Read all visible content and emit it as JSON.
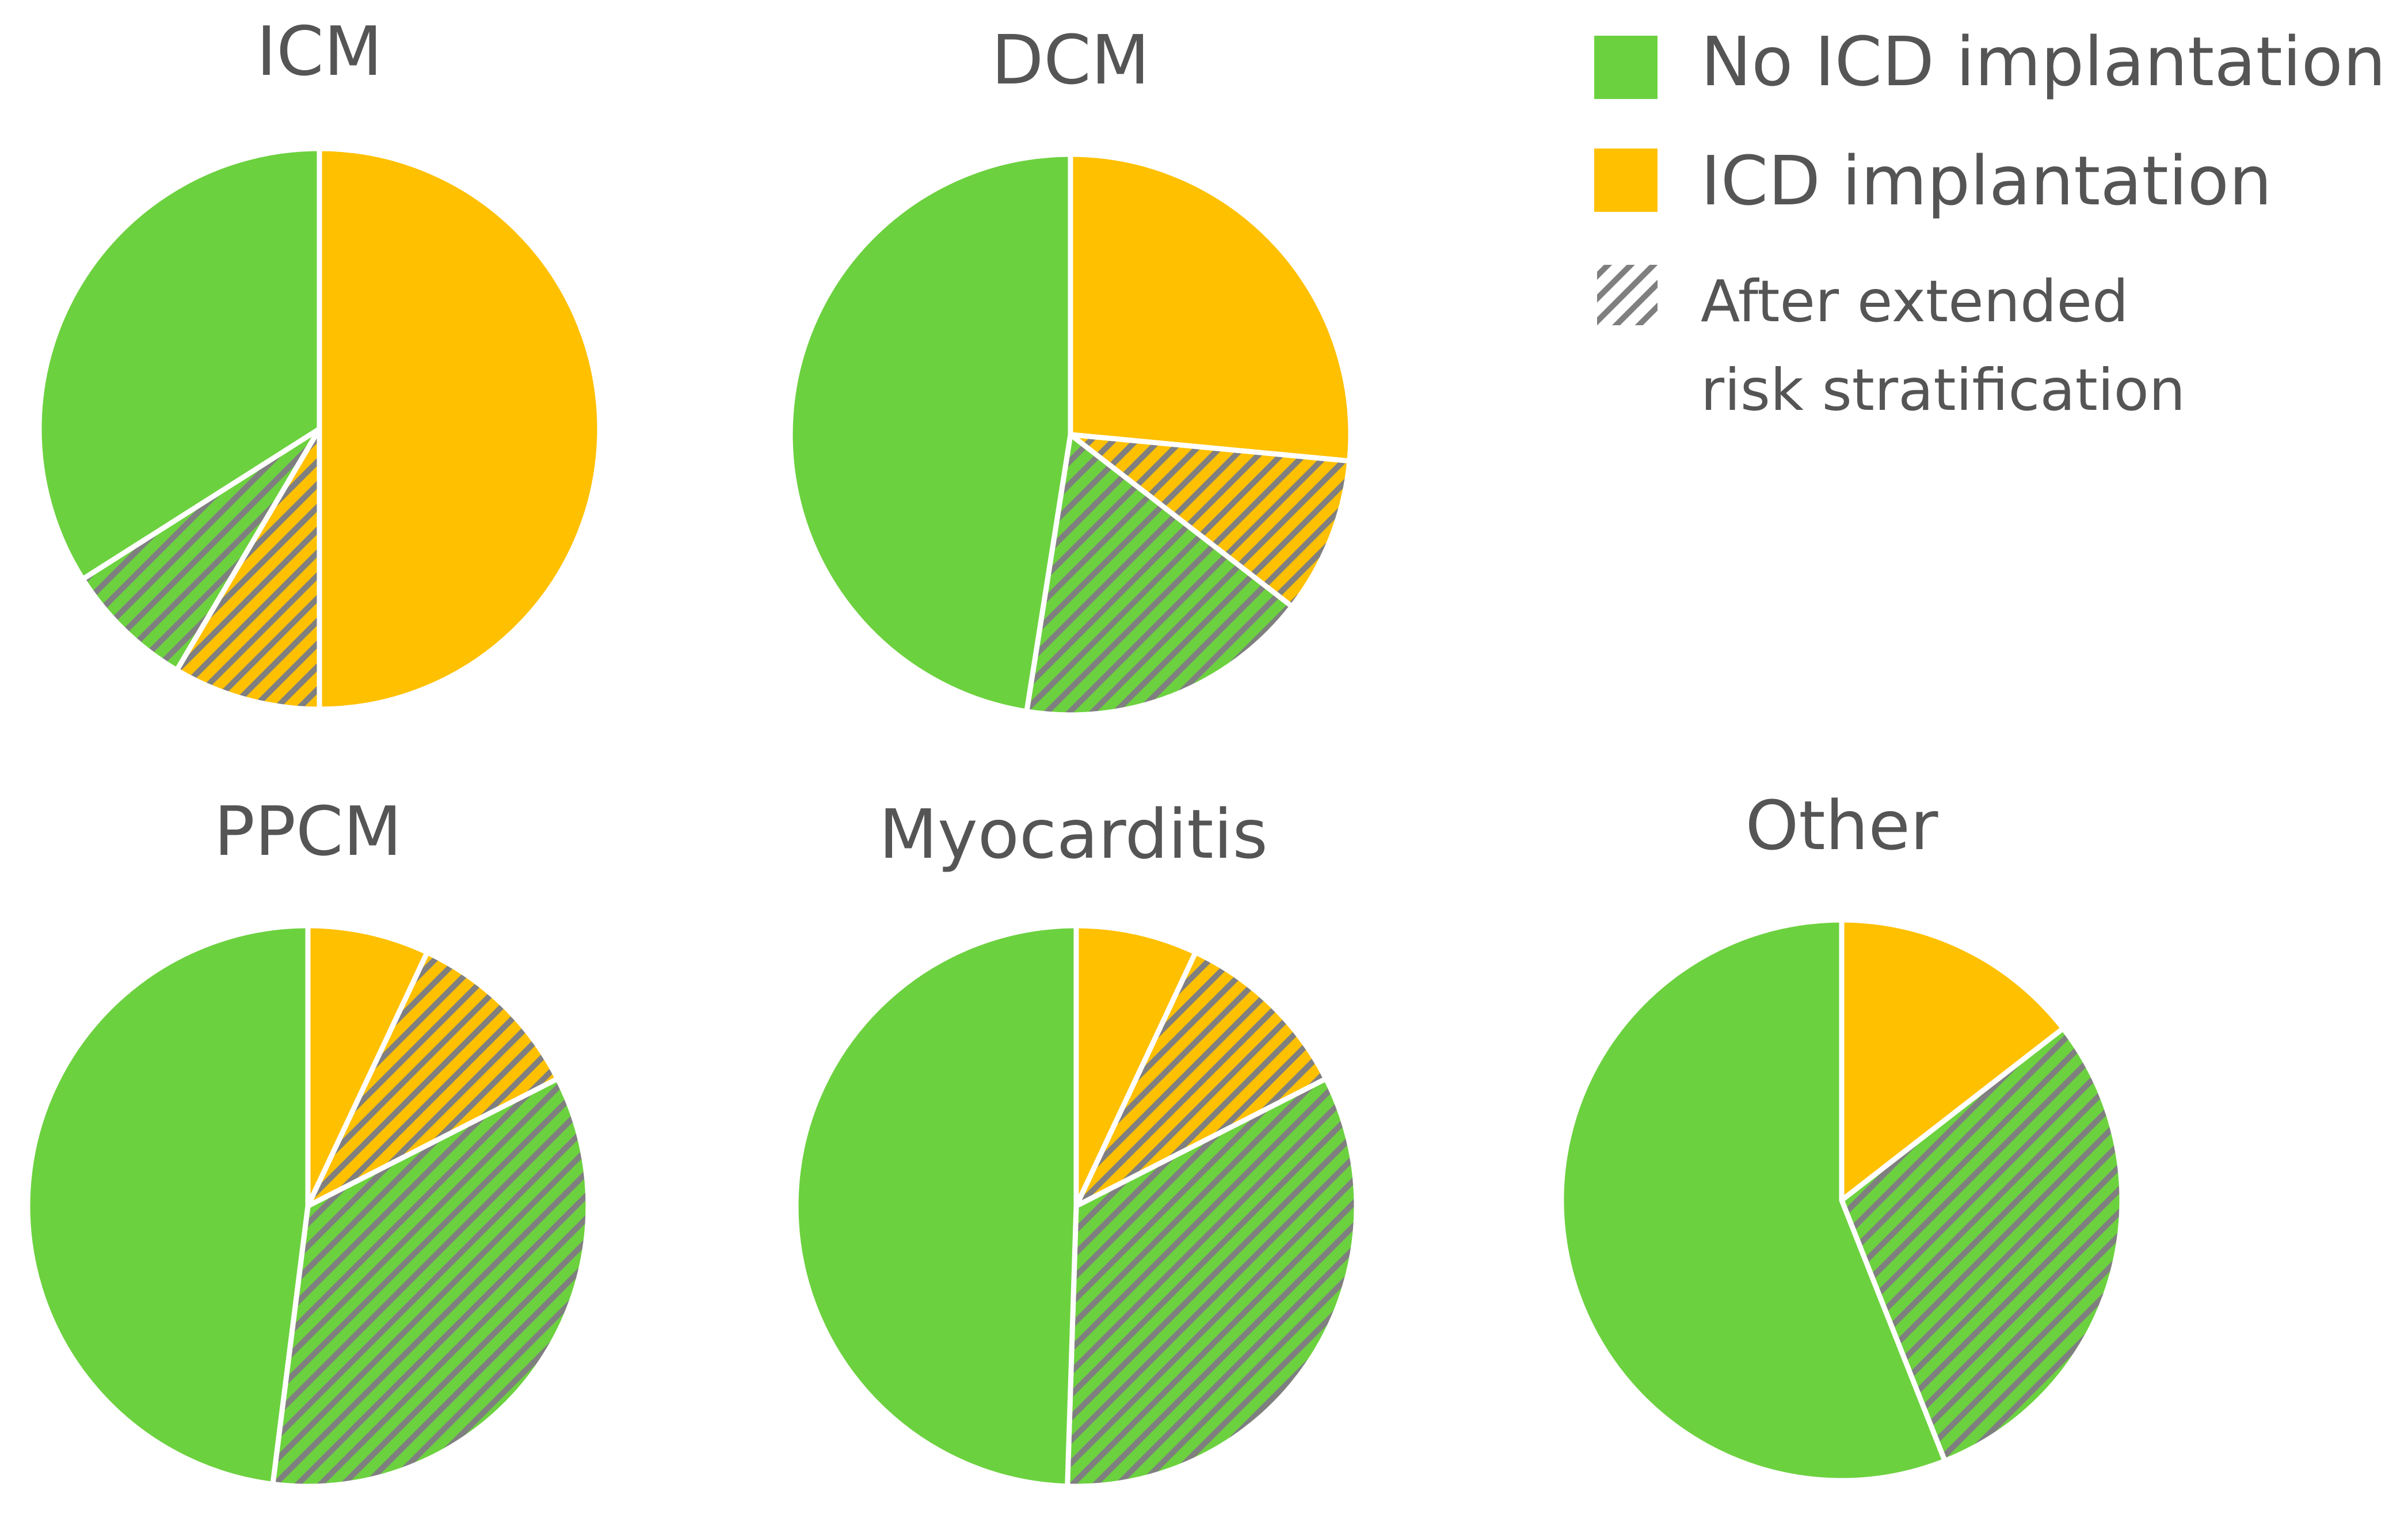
{
  "colors": {
    "no_icd": "#6CD13F",
    "icd": "#FFC000",
    "hatch": "#7F7F7F",
    "text": "#555555"
  },
  "legend": {
    "no_icd_label": "No ICD implantation",
    "icd_label": "ICD implantation",
    "hatch_label_line1": "After extended",
    "hatch_label_line2": "risk stratification"
  },
  "chart_data": [
    {
      "type": "pie",
      "title": "ICM",
      "slices": [
        {
          "label": "ICD implantation",
          "value": 50.0,
          "category": "icd",
          "hatched": false
        },
        {
          "label": "ICD implantation after extended risk stratification",
          "value": 8.5,
          "category": "icd",
          "hatched": true
        },
        {
          "label": "No ICD implantation after extended risk stratification",
          "value": 7.5,
          "category": "no_icd",
          "hatched": true
        },
        {
          "label": "No ICD implantation",
          "value": 34.0,
          "category": "no_icd",
          "hatched": false
        }
      ]
    },
    {
      "type": "pie",
      "title": "DCM",
      "slices": [
        {
          "label": "ICD implantation",
          "value": 26.5,
          "category": "icd",
          "hatched": false
        },
        {
          "label": "ICD implantation after extended risk stratification",
          "value": 9.0,
          "category": "icd",
          "hatched": true
        },
        {
          "label": "No ICD implantation after extended risk stratification",
          "value": 17.0,
          "category": "no_icd",
          "hatched": true
        },
        {
          "label": "No ICD implantation",
          "value": 47.5,
          "category": "no_icd",
          "hatched": false
        }
      ]
    },
    {
      "type": "pie",
      "title": "PPCM",
      "slices": [
        {
          "label": "ICD implantation",
          "value": 7.0,
          "category": "icd",
          "hatched": false
        },
        {
          "label": "ICD implantation after extended risk stratification",
          "value": 10.5,
          "category": "icd",
          "hatched": true
        },
        {
          "label": "No ICD implantation after extended risk stratification",
          "value": 34.5,
          "category": "no_icd",
          "hatched": true
        },
        {
          "label": "No ICD implantation",
          "value": 48.0,
          "category": "no_icd",
          "hatched": false
        }
      ]
    },
    {
      "type": "pie",
      "title": "Myocarditis",
      "slices": [
        {
          "label": "ICD implantation",
          "value": 7.0,
          "category": "icd",
          "hatched": false
        },
        {
          "label": "ICD implantation after extended risk stratification",
          "value": 10.5,
          "category": "icd",
          "hatched": true
        },
        {
          "label": "No ICD implantation after extended risk stratification",
          "value": 33.0,
          "category": "no_icd",
          "hatched": true
        },
        {
          "label": "No ICD implantation",
          "value": 49.5,
          "category": "no_icd",
          "hatched": false
        }
      ]
    },
    {
      "type": "pie",
      "title": "Other",
      "slices": [
        {
          "label": "ICD implantation",
          "value": 14.5,
          "category": "icd",
          "hatched": false
        },
        {
          "label": "No ICD implantation after extended risk stratification",
          "value": 29.5,
          "category": "no_icd",
          "hatched": true
        },
        {
          "label": "No ICD implantation",
          "value": 56.0,
          "category": "no_icd",
          "hatched": false
        }
      ]
    }
  ]
}
